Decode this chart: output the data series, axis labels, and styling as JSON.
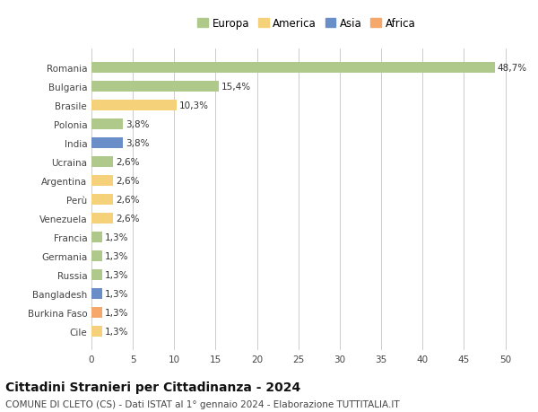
{
  "countries": [
    "Romania",
    "Bulgaria",
    "Brasile",
    "Polonia",
    "India",
    "Ucraina",
    "Argentina",
    "Perù",
    "Venezuela",
    "Francia",
    "Germania",
    "Russia",
    "Bangladesh",
    "Burkina Faso",
    "Cile"
  ],
  "values": [
    48.7,
    15.4,
    10.3,
    3.8,
    3.8,
    2.6,
    2.6,
    2.6,
    2.6,
    1.3,
    1.3,
    1.3,
    1.3,
    1.3,
    1.3
  ],
  "labels": [
    "48,7%",
    "15,4%",
    "10,3%",
    "3,8%",
    "3,8%",
    "2,6%",
    "2,6%",
    "2,6%",
    "2,6%",
    "1,3%",
    "1,3%",
    "1,3%",
    "1,3%",
    "1,3%",
    "1,3%"
  ],
  "continents": [
    "Europa",
    "Europa",
    "America",
    "Europa",
    "Asia",
    "Europa",
    "America",
    "America",
    "America",
    "Europa",
    "Europa",
    "Europa",
    "Asia",
    "Africa",
    "America"
  ],
  "continent_colors": {
    "Europa": "#aec98a",
    "America": "#f5d27a",
    "Asia": "#6a8fc8",
    "Africa": "#f5a86a"
  },
  "legend_order": [
    "Europa",
    "America",
    "Asia",
    "Africa"
  ],
  "xlim": [
    0,
    52
  ],
  "xticks": [
    0,
    5,
    10,
    15,
    20,
    25,
    30,
    35,
    40,
    45,
    50
  ],
  "title": "Cittadini Stranieri per Cittadinanza - 2024",
  "subtitle": "COMUNE DI CLETO (CS) - Dati ISTAT al 1° gennaio 2024 - Elaborazione TUTTITALIA.IT",
  "background_color": "#ffffff",
  "grid_color": "#cccccc",
  "bar_height": 0.55,
  "title_fontsize": 10,
  "subtitle_fontsize": 7.5,
  "tick_fontsize": 7.5,
  "label_fontsize": 7.5,
  "legend_fontsize": 8.5
}
